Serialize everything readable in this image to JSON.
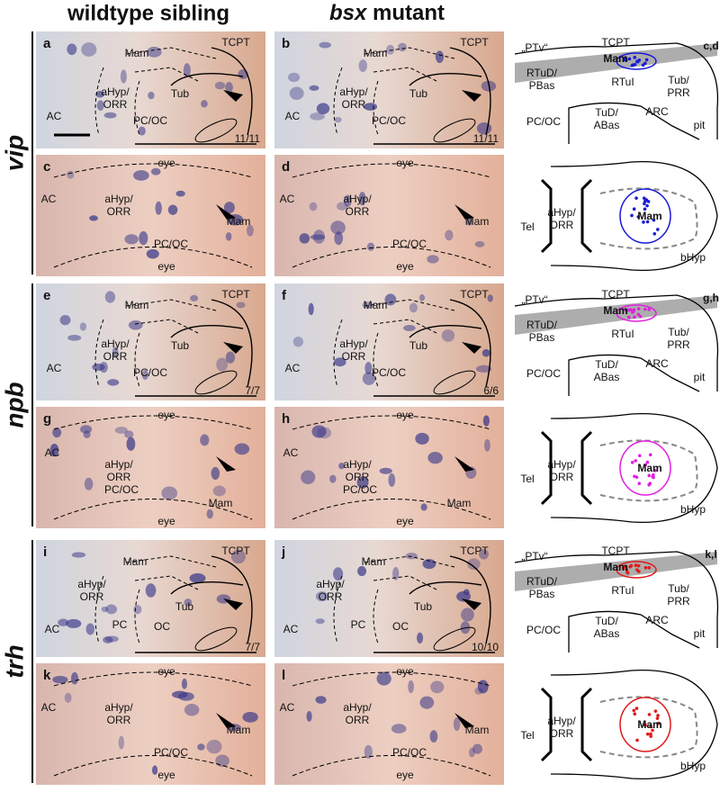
{
  "column_headers": {
    "wildtype": "wildtype sibling",
    "mutant_gene": "bsx",
    "mutant": "mutant"
  },
  "rows": [
    {
      "gene": "vip",
      "color": "#1a1ad6",
      "panels": [
        {
          "letter": "a",
          "labels": [
            "TCPT",
            "Mam",
            "aHyp/",
            "ORR",
            "Tub",
            "AC",
            "PC/OC"
          ],
          "count": "11/11"
        },
        {
          "letter": "b",
          "labels": [
            "TCPT",
            "Mam",
            "aHyp/",
            "ORR",
            "Tub",
            "AC",
            "PC/OC"
          ],
          "count": "11/11"
        },
        {
          "letter": "c",
          "labels": [
            "eye",
            "AC",
            "aHyp/",
            "ORR",
            "Mam",
            "PC/OC",
            "eye"
          ]
        },
        {
          "letter": "d",
          "labels": [
            "eye",
            "AC",
            "aHyp/",
            "ORR",
            "Mam",
            "PC/OC",
            "eye"
          ]
        }
      ],
      "schematic_lateral": [
        "„PTv“",
        "TCPT",
        "Mam",
        "RTuD/",
        "PBas",
        "RTuI",
        "Tub/",
        "PRR",
        "PC/OC",
        "TuD/",
        "ABas",
        "ARC",
        "pit",
        "c,d"
      ],
      "schematic_ventral": [
        "Tel",
        "aHyp/",
        "ORR",
        "Mam",
        "bHyp"
      ]
    },
    {
      "gene": "npb",
      "color": "#e020e0",
      "panels": [
        {
          "letter": "e",
          "labels": [
            "TCPT",
            "Mam",
            "aHyp/",
            "ORR",
            "Tub",
            "AC",
            "PC/OC"
          ],
          "count": "7/7"
        },
        {
          "letter": "f",
          "labels": [
            "TCPT",
            "Mam",
            "aHyp/",
            "ORR",
            "Tub",
            "AC",
            "PC/OC"
          ],
          "count": "6/6"
        },
        {
          "letter": "g",
          "labels": [
            "eye",
            "AC",
            "aHyp/",
            "ORR",
            "PC/OC",
            "Mam",
            "eye"
          ]
        },
        {
          "letter": "h",
          "labels": [
            "eye",
            "AC",
            "aHyp/",
            "ORR",
            "PC/OC",
            "Mam",
            "eye"
          ]
        }
      ],
      "schematic_lateral": [
        "„PTv“",
        "TCPT",
        "Mam",
        "RTuD/",
        "PBas",
        "RTuI",
        "Tub/",
        "PRR",
        "PC/OC",
        "TuD/",
        "ABas",
        "ARC",
        "pit",
        "g,h"
      ],
      "schematic_ventral": [
        "Tel",
        "aHyp/",
        "ORR",
        "Mam",
        "bHyp"
      ]
    },
    {
      "gene": "trh",
      "color": "#e01a1a",
      "panels": [
        {
          "letter": "i",
          "labels": [
            "TCPT",
            "Mam",
            "aHyp/",
            "ORR",
            "Tub",
            "AC",
            "PC",
            "OC"
          ],
          "count": "7/7"
        },
        {
          "letter": "j",
          "labels": [
            "TCPT",
            "Mam",
            "aHyp/",
            "ORR",
            "Tub",
            "AC",
            "PC",
            "OC"
          ],
          "count": "10/10"
        },
        {
          "letter": "k",
          "labels": [
            "eye",
            "AC",
            "aHyp/",
            "ORR",
            "Mam",
            "PC/OC",
            "eye"
          ]
        },
        {
          "letter": "l",
          "labels": [
            "eye",
            "AC",
            "aHyp/",
            "ORR",
            "Mam",
            "PC/OC",
            "eye"
          ]
        }
      ],
      "schematic_lateral": [
        "„PTv“",
        "TCPT",
        "Mam",
        "RTuD/",
        "PBas",
        "RTuI",
        "Tub/",
        "PRR",
        "PC/OC",
        "TuD/",
        "ABas",
        "ARC",
        "pit",
        "k,l"
      ],
      "schematic_ventral": [
        "Tel",
        "aHyp/",
        "ORR",
        "Mam",
        "bHyp"
      ]
    }
  ]
}
